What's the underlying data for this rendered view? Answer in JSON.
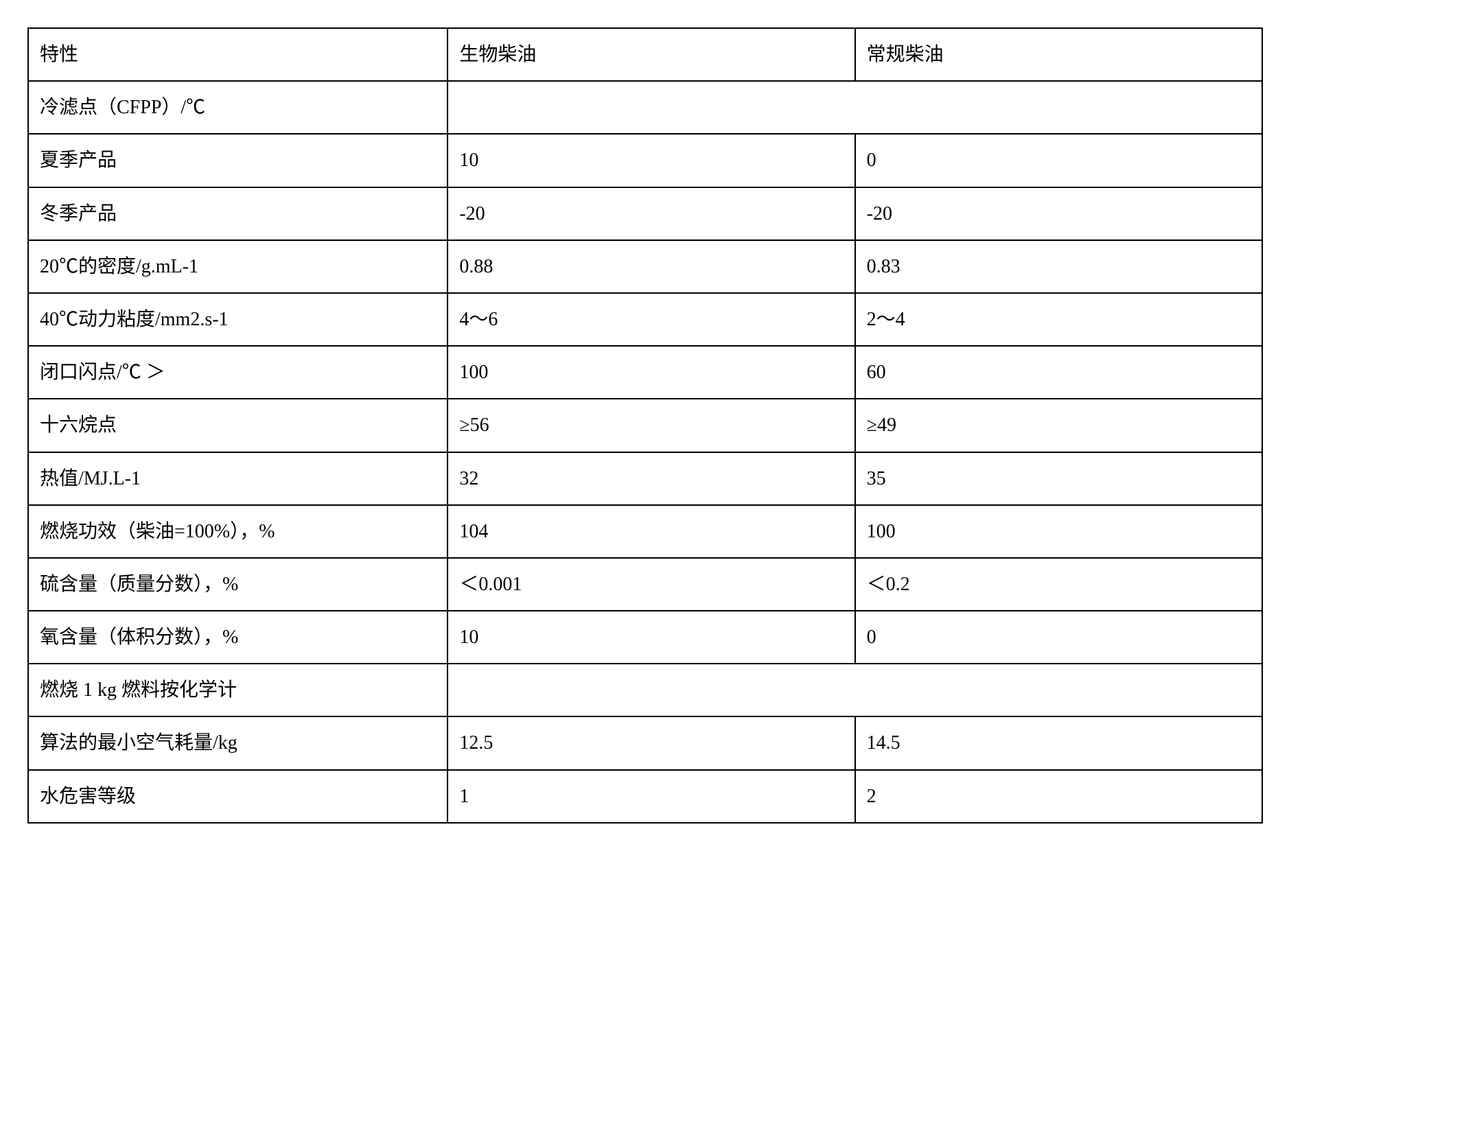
{
  "table": {
    "border_color": "#000000",
    "background_color": "#ffffff",
    "text_color": "#000000",
    "font_size_pt": 28,
    "columns": [
      {
        "key": "property",
        "label": "特性",
        "width_pct": 34
      },
      {
        "key": "biodiesel",
        "label": "生物柴油",
        "width_pct": 33
      },
      {
        "key": "conventional",
        "label": "常规柴油",
        "width_pct": 33
      }
    ],
    "rows": [
      {
        "type": "header",
        "cells": [
          "特性",
          "生物柴油",
          "常规柴油"
        ]
      },
      {
        "type": "section",
        "cells": [
          "冷滤点（CFPP）/℃",
          ""
        ]
      },
      {
        "type": "data",
        "cells": [
          "夏季产品",
          "10",
          "0"
        ]
      },
      {
        "type": "data",
        "cells": [
          "冬季产品",
          "-20",
          "-20"
        ]
      },
      {
        "type": "data",
        "cells": [
          "20℃的密度/g.mL-1",
          "0.88",
          "0.83"
        ]
      },
      {
        "type": "data",
        "cells": [
          "40℃动力粘度/mm2.s-1",
          "4～6",
          "2～4"
        ]
      },
      {
        "type": "data",
        "cells": [
          "闭口闪点/℃ ＞",
          "100",
          "60"
        ]
      },
      {
        "type": "data",
        "cells": [
          "十六烷点",
          "≥56",
          "≥49"
        ]
      },
      {
        "type": "data",
        "cells": [
          "热值/MJ.L-1",
          "  32",
          "35"
        ]
      },
      {
        "type": "data",
        "cells": [
          "燃烧功效（柴油=100%），%",
          "104",
          "100"
        ]
      },
      {
        "type": "data",
        "cells": [
          "硫含量（质量分数），%",
          "＜0.001",
          "＜0.2"
        ]
      },
      {
        "type": "data",
        "cells": [
          "氧含量（体积分数），%",
          "  10",
          "0"
        ]
      },
      {
        "type": "section",
        "cells": [
          "燃烧 1 kg 燃料按化学计",
          ""
        ]
      },
      {
        "type": "data",
        "cells": [
          "算法的最小空气耗量/kg",
          "12.5",
          "14.5"
        ]
      },
      {
        "type": "data",
        "cells": [
          "水危害等级",
          "1",
          "2"
        ]
      }
    ]
  }
}
